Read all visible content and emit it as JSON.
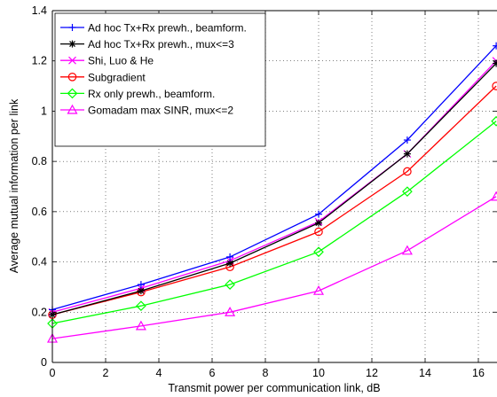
{
  "chart_data": {
    "type": "line",
    "xlabel": "Transmit power per communication link, dB",
    "ylabel": "Average mutual information per link",
    "xlim": [
      0,
      16.67
    ],
    "ylim": [
      0,
      1.4
    ],
    "xticks": [
      "0",
      "2",
      "4",
      "6",
      "8",
      "10",
      "12",
      "14",
      "16"
    ],
    "yticks": [
      "0",
      "0.2",
      "0.4",
      "0.6",
      "0.8",
      "1",
      "1.2",
      "1.4"
    ],
    "grid": true,
    "legend_position": "top-left",
    "x": [
      0,
      3.33,
      6.67,
      10,
      13.33,
      16.67
    ],
    "series": [
      {
        "name": "Ad hoc Tx+Rx prewh., beamform.",
        "color": "#0000ff",
        "marker": "plus",
        "values": [
          0.21,
          0.31,
          0.42,
          0.59,
          0.885,
          1.26
        ]
      },
      {
        "name": "Ad hoc Tx+Rx prewh., mux<=3",
        "color": "#000000",
        "marker": "star",
        "values": [
          0.19,
          0.285,
          0.395,
          0.555,
          0.83,
          1.19
        ]
      },
      {
        "name": "Shi, Luo & He",
        "color": "#ff00ff",
        "marker": "x",
        "values": [
          0.2,
          0.295,
          0.405,
          0.56,
          0.83,
          1.2
        ]
      },
      {
        "name": "Subgradient",
        "color": "#ff0000",
        "marker": "circle",
        "values": [
          0.19,
          0.28,
          0.38,
          0.52,
          0.76,
          1.1
        ]
      },
      {
        "name": "Rx only prewh., beamform.",
        "color": "#00ff00",
        "marker": "diamond",
        "values": [
          0.155,
          0.225,
          0.31,
          0.44,
          0.68,
          0.96
        ]
      },
      {
        "name": "Gomadam max SINR, mux<=2",
        "color": "#ff00ff",
        "marker": "triangle",
        "values": [
          0.095,
          0.145,
          0.2,
          0.285,
          0.445,
          0.66
        ]
      }
    ]
  }
}
